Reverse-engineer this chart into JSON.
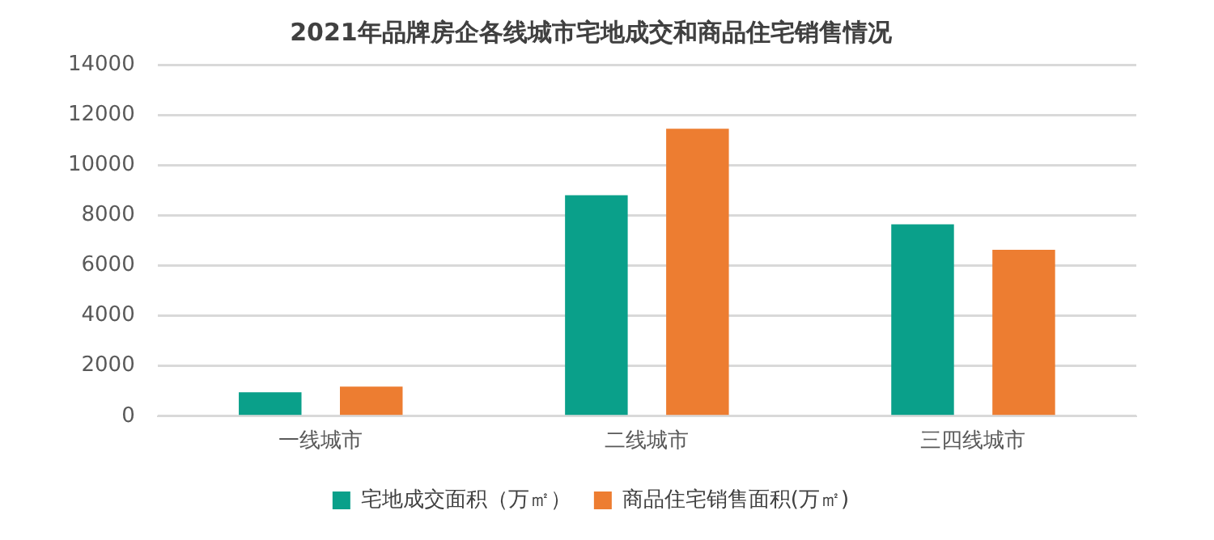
{
  "chart_data": {
    "type": "bar",
    "title": "2021年品牌房企各线城市宅地成交和商品住宅销售情况",
    "categories": [
      "一线城市",
      "二线城市",
      "三四线城市"
    ],
    "series": [
      {
        "name": "宅地成交面积（万㎡）",
        "color": "#0aa08a",
        "values": [
          950,
          8800,
          7640
        ]
      },
      {
        "name": "商品住宅销售面积(万㎡)",
        "color": "#ed7d31",
        "values": [
          1180,
          11450,
          6630
        ]
      }
    ],
    "ylim": [
      0,
      14000
    ],
    "yticks": [
      0,
      2000,
      4000,
      6000,
      8000,
      10000,
      12000,
      14000
    ],
    "grid": "y",
    "legend": "bottom"
  }
}
